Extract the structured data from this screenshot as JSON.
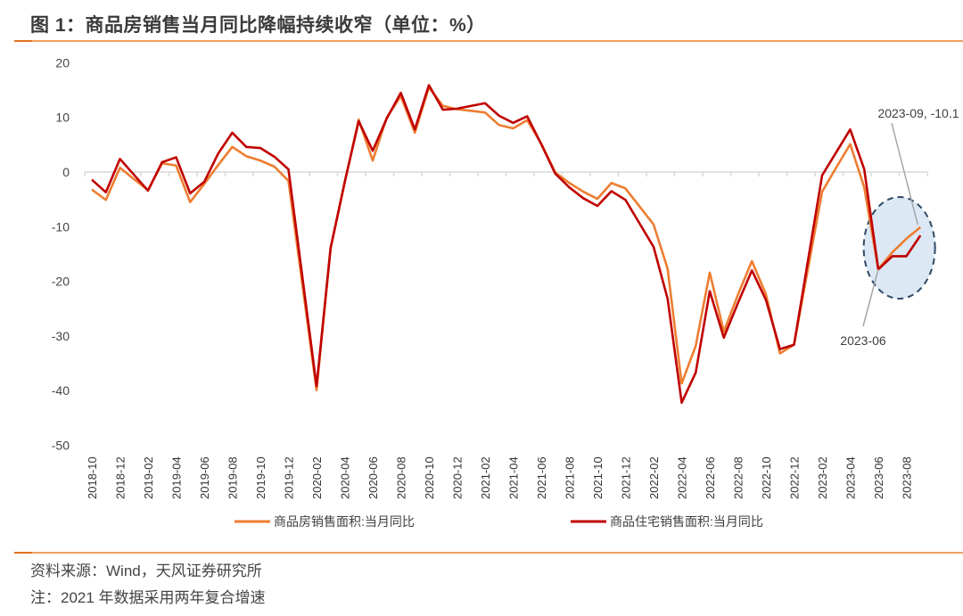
{
  "title": "图 1：商品房销售当月同比降幅持续收窄（单位：%）",
  "source": "资料来源：Wind，天风证券研究所",
  "note": "注：2021 年数据采用两年复合增速",
  "chart_data": {
    "type": "line",
    "title": "图 1：商品房销售当月同比降幅持续收窄（单位：%）",
    "xlabel": "",
    "ylabel": "%",
    "ylim": [
      -50,
      20
    ],
    "yticks": [
      20,
      10,
      0,
      -10,
      -20,
      -30,
      -40,
      -50
    ],
    "grid": false,
    "legend_position": "bottom",
    "x": [
      "2018-10",
      "2018-11",
      "2018-12",
      "2019-01",
      "2019-02",
      "2019-03",
      "2019-04",
      "2019-05",
      "2019-06",
      "2019-07",
      "2019-08",
      "2019-09",
      "2019-10",
      "2019-11",
      "2019-12",
      "2020-01",
      "2020-02",
      "2020-03",
      "2020-04",
      "2020-05",
      "2020-06",
      "2020-07",
      "2020-08",
      "2020-09",
      "2020-10",
      "2020-11",
      "2020-12",
      "2021-01",
      "2021-02",
      "2021-03",
      "2021-04",
      "2021-05",
      "2021-06",
      "2021-07",
      "2021-08",
      "2021-09",
      "2021-10",
      "2021-11",
      "2021-12",
      "2022-01",
      "2022-02",
      "2022-03",
      "2022-04",
      "2022-05",
      "2022-06",
      "2022-07",
      "2022-08",
      "2022-09",
      "2022-10",
      "2022-11",
      "2022-12",
      "2023-01",
      "2023-02",
      "2023-03",
      "2023-04",
      "2023-05",
      "2023-06",
      "2023-07",
      "2023-08",
      "2023-09"
    ],
    "series": [
      {
        "name": "商品房销售面积:当月同比",
        "color": "#ed7d31",
        "values": [
          -3.2,
          -5.1,
          0.8,
          -1.3,
          -3.3,
          1.6,
          1.2,
          -5.5,
          -2.2,
          1.3,
          4.6,
          2.9,
          2.1,
          1.0,
          -1.6,
          null,
          -39.9,
          -14.0,
          -2.0,
          9.6,
          2.1,
          10.0,
          13.9,
          7.2,
          15.5,
          12.1,
          11.5,
          null,
          10.9,
          8.6,
          8.0,
          9.5,
          5.2,
          -0.1,
          -2.0,
          -3.6,
          -4.9,
          -2.0,
          -3.0,
          null,
          -9.6,
          -17.7,
          -38.7,
          -31.8,
          -18.4,
          -29.2,
          -22.5,
          -16.3,
          -22.4,
          -33.2,
          -31.6,
          null,
          -3.6,
          0.8,
          5.1,
          -2.8,
          -17.8,
          -14.7,
          -12.2,
          -10.1
        ]
      },
      {
        "name": "商品住宅销售面积:当月同比",
        "color": "#c00000",
        "values": [
          -1.4,
          -3.7,
          2.4,
          -0.5,
          -3.4,
          1.8,
          2.7,
          -3.9,
          -1.8,
          3.4,
          7.2,
          4.6,
          4.4,
          2.8,
          0.5,
          null,
          -39.2,
          -13.9,
          -1.9,
          9.3,
          3.9,
          9.8,
          14.5,
          7.8,
          15.9,
          11.4,
          11.6,
          null,
          12.6,
          10.3,
          9.0,
          10.2,
          5.1,
          -0.3,
          -2.8,
          -4.8,
          -6.2,
          -3.5,
          -5.1,
          null,
          -13.7,
          -23.2,
          -42.2,
          -36.7,
          -21.8,
          -30.3,
          -24.0,
          -18.0,
          -23.4,
          -32.4,
          -31.6,
          null,
          -0.6,
          3.6,
          7.8,
          0.5,
          -17.8,
          -15.4,
          -15.4,
          -11.6
        ]
      }
    ],
    "annotations": [
      "2023-09, -10.1",
      "2023-06"
    ],
    "highlight_color": "#dce8f4"
  }
}
